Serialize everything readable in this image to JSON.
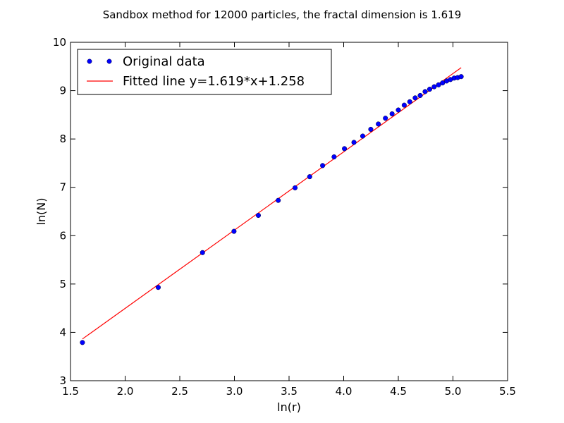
{
  "chart_data": {
    "type": "scatter",
    "title": "Sandbox method for 12000 particles, the fractal dimension is 1.619",
    "xlabel": "ln(r)",
    "ylabel": "ln(N)",
    "xlim": [
      1.5,
      5.5
    ],
    "ylim": [
      3,
      10
    ],
    "xticks": [
      1.5,
      2.0,
      2.5,
      3.0,
      3.5,
      4.0,
      4.5,
      5.0,
      5.5
    ],
    "xtick_labels": [
      "1.5",
      "2.0",
      "2.5",
      "3.0",
      "3.5",
      "4.0",
      "4.5",
      "5.0",
      "5.5"
    ],
    "yticks": [
      3,
      4,
      5,
      6,
      7,
      8,
      9,
      10
    ],
    "ytick_labels": [
      "3",
      "4",
      "5",
      "6",
      "7",
      "8",
      "9",
      "10"
    ],
    "grid": false,
    "legend_position": "top-left",
    "series": [
      {
        "name": "Original data",
        "type": "scatter",
        "color": "#0000ff",
        "x": [
          1.609,
          2.303,
          2.708,
          2.996,
          3.219,
          3.401,
          3.555,
          3.689,
          3.807,
          3.912,
          4.007,
          4.094,
          4.174,
          4.248,
          4.317,
          4.382,
          4.443,
          4.5,
          4.554,
          4.605,
          4.654,
          4.7,
          4.745,
          4.787,
          4.828,
          4.868,
          4.905,
          4.942,
          4.977,
          5.011,
          5.043,
          5.075
        ],
        "y": [
          3.79,
          4.93,
          5.65,
          6.09,
          6.42,
          6.73,
          6.99,
          7.22,
          7.45,
          7.63,
          7.8,
          7.93,
          8.06,
          8.2,
          8.31,
          8.43,
          8.52,
          8.6,
          8.7,
          8.77,
          8.85,
          8.9,
          8.98,
          9.03,
          9.08,
          9.12,
          9.16,
          9.2,
          9.23,
          9.26,
          9.27,
          9.29
        ]
      },
      {
        "name": "Fitted line y=1.619*x+1.258",
        "type": "line",
        "color": "#ff0000",
        "slope": 1.619,
        "intercept": 1.258,
        "x": [
          1.609,
          5.075
        ],
        "y": [
          3.863,
          9.475
        ]
      }
    ]
  }
}
